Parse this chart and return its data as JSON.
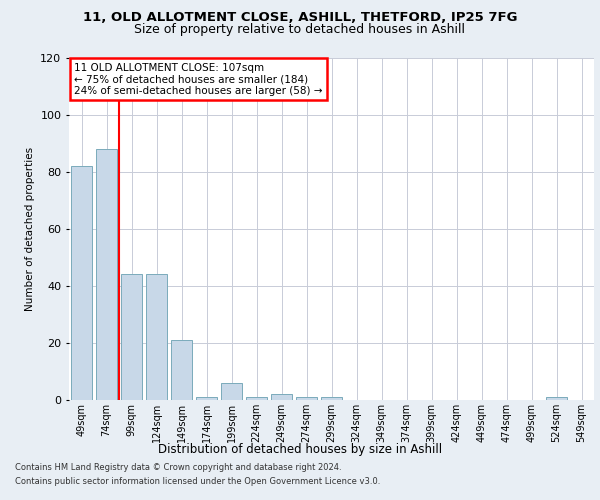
{
  "title1": "11, OLD ALLOTMENT CLOSE, ASHILL, THETFORD, IP25 7FG",
  "title2": "Size of property relative to detached houses in Ashill",
  "xlabel": "Distribution of detached houses by size in Ashill",
  "ylabel": "Number of detached properties",
  "footer1": "Contains HM Land Registry data © Crown copyright and database right 2024.",
  "footer2": "Contains public sector information licensed under the Open Government Licence v3.0.",
  "categories": [
    "49sqm",
    "74sqm",
    "99sqm",
    "124sqm",
    "149sqm",
    "174sqm",
    "199sqm",
    "224sqm",
    "249sqm",
    "274sqm",
    "299sqm",
    "324sqm",
    "349sqm",
    "374sqm",
    "399sqm",
    "424sqm",
    "449sqm",
    "474sqm",
    "499sqm",
    "524sqm",
    "549sqm"
  ],
  "values": [
    82,
    88,
    44,
    44,
    21,
    1,
    6,
    1,
    2,
    1,
    1,
    0,
    0,
    0,
    0,
    0,
    0,
    0,
    0,
    1,
    0
  ],
  "bar_color": "#c8d8e8",
  "bar_edge_color": "#7aaabb",
  "red_line_x": 1.5,
  "annotation_text": "11 OLD ALLOTMENT CLOSE: 107sqm\n← 75% of detached houses are smaller (184)\n24% of semi-detached houses are larger (58) →",
  "annotation_box_color": "white",
  "annotation_box_edge": "red",
  "ylim": [
    0,
    120
  ],
  "yticks": [
    0,
    20,
    40,
    60,
    80,
    100,
    120
  ],
  "bg_color": "#e8eef4",
  "plot_bg": "white",
  "grid_color": "#c8ccd8"
}
